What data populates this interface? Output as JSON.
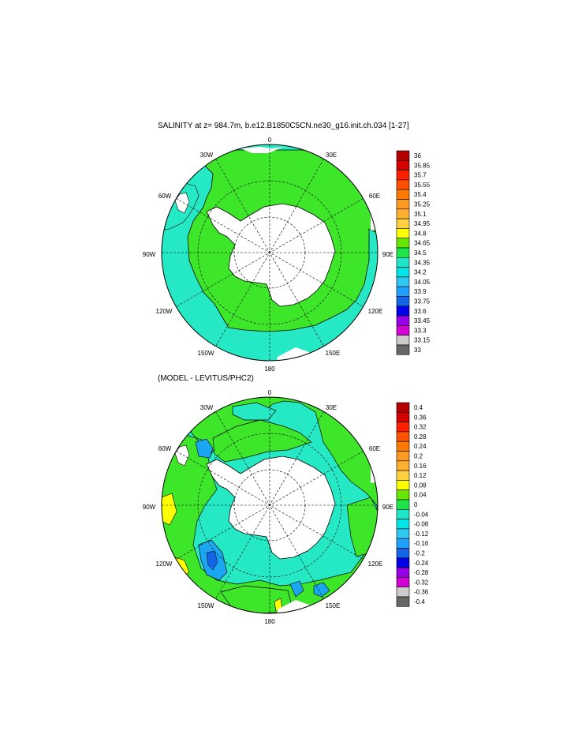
{
  "panel1": {
    "title": "SALINITY at z= 984.7m, b.e12.B1850C5CN.ne30_g16.init.ch.034 [1-27]",
    "lon_labels": {
      "top": "0",
      "tr": "30E",
      "rt": "60E",
      "r": "90E",
      "rb": "120E",
      "br": "150E",
      "bottom": "180",
      "bl": "150W",
      "lb": "120W",
      "l": "90W",
      "lt": "60W",
      "tl": "30W"
    },
    "colorbar": {
      "labels": [
        "36",
        "35.85",
        "35.7",
        "35.55",
        "35.4",
        "35.25",
        "35.1",
        "34.95",
        "34.8",
        "34.65",
        "34.5",
        "34.35",
        "34.2",
        "34.05",
        "33.9",
        "33.75",
        "33.6",
        "33.45",
        "33.3",
        "33.15",
        "33"
      ],
      "colors": [
        "#b30000",
        "#d40000",
        "#ff2000",
        "#ff5000",
        "#ff7a00",
        "#ff9a20",
        "#ffb030",
        "#ffd040",
        "#ffff00",
        "#66e600",
        "#1ee64a",
        "#1ee6c8",
        "#00e6e6",
        "#30c8f0",
        "#1ea0ff",
        "#1464e6",
        "#0000e6",
        "#9600e6",
        "#d200d2",
        "#cccccc",
        "#666666"
      ]
    }
  },
  "panel2": {
    "title": "(MODEL - LEVITUS/PHC2)",
    "lon_labels": {
      "top": "0",
      "tr": "30E",
      "rt": "60E",
      "r": "90E",
      "rb": "120E",
      "br": "150E",
      "bottom": "180",
      "bl": "150W",
      "lb": "120W",
      "l": "90W",
      "lt": "60W",
      "tl": "30W"
    },
    "colorbar": {
      "labels": [
        "0.4",
        "0.36",
        "0.32",
        "0.28",
        "0.24",
        "0.2",
        "0.16",
        "0.12",
        "0.08",
        "0.04",
        "0",
        "-0.04",
        "-0.08",
        "-0.12",
        "-0.16",
        "-0.2",
        "-0.24",
        "-0.28",
        "-0.32",
        "-0.36",
        "-0.4"
      ],
      "colors": [
        "#b30000",
        "#d40000",
        "#ff2000",
        "#ff5000",
        "#ff7a00",
        "#ff9a20",
        "#ffb030",
        "#ffd040",
        "#ffff00",
        "#66e600",
        "#1ee64a",
        "#1ee6c8",
        "#00e6e6",
        "#30c8f0",
        "#1ea0ff",
        "#1464e6",
        "#0000e6",
        "#9600e6",
        "#d200d2",
        "#cccccc",
        "#666666"
      ]
    }
  },
  "colors": {
    "land": "#ffffff",
    "ocean_a": "#3ee629",
    "ocean_b": "#25e8c5",
    "yellow": "#ffff00",
    "blue": "#1aa6f0"
  }
}
